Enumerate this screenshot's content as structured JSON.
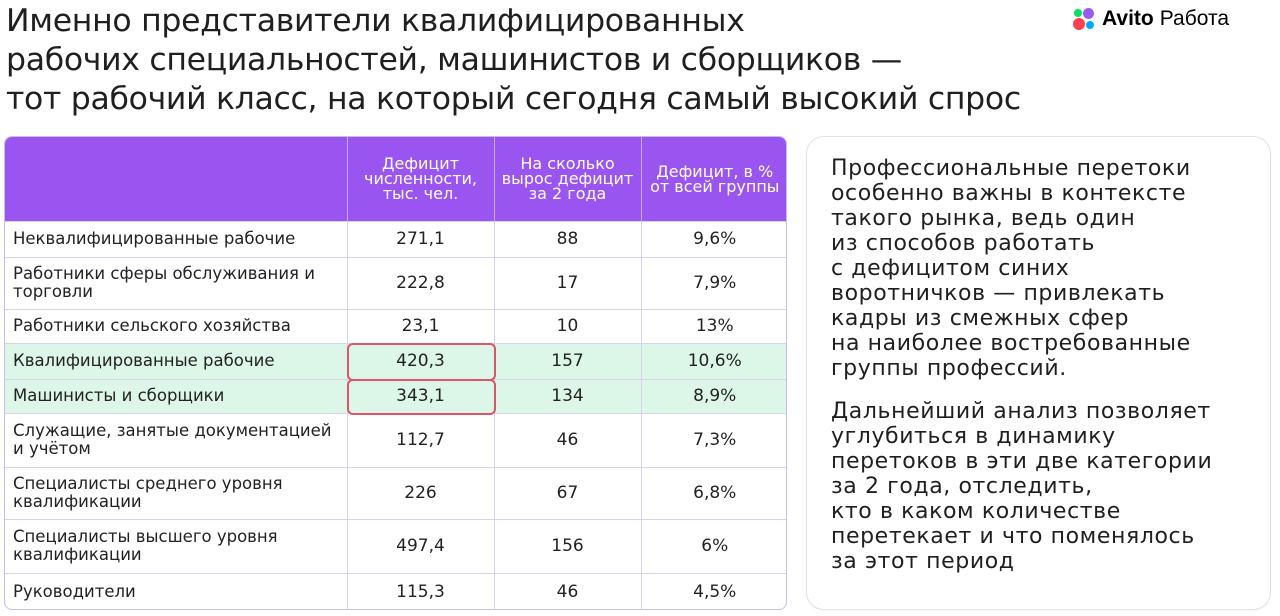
{
  "title_lines": [
    "Именно представители квалифицированных",
    "рабочих специальностей, машинистов и сборщиков —",
    "тот рабочий класс, на который сегодня самый высокий спрос"
  ],
  "logo": {
    "brand": "Avito",
    "product": "Работа",
    "colors": [
      "#04e061",
      "#ff4053",
      "#965eeb",
      "#0af"
    ]
  },
  "table": {
    "header_color": "#9a55f0",
    "highlight_color": "#dcf6e7",
    "highlight_border_color": "#e05467",
    "headers": [
      "",
      "Дефицит численности, тыс. чел.",
      "На сколько вырос дефицит за 2 года",
      "Дефицит, в % от всей группы"
    ],
    "rows": [
      {
        "name": "Неквалифицированные рабочие",
        "deficit": "271,1",
        "growth": "88",
        "percent": "9,6%",
        "highlighted": false
      },
      {
        "name": "Работники сферы обслуживания и торговли",
        "deficit": "222,8",
        "growth": "17",
        "percent": "7,9%",
        "highlighted": false
      },
      {
        "name": "Работники сельского хозяйства",
        "deficit": "23,1",
        "growth": "10",
        "percent": "13%",
        "highlighted": false
      },
      {
        "name": "Квалифицированные рабочие",
        "deficit": "420,3",
        "growth": "157",
        "percent": "10,6%",
        "highlighted": true
      },
      {
        "name": "Машинисты и сборщики",
        "deficit": "343,1",
        "growth": "134",
        "percent": "8,9%",
        "highlighted": true
      },
      {
        "name": "Служащие, занятые документацией и учётом",
        "deficit": "112,7",
        "growth": "46",
        "percent": "7,3%",
        "highlighted": false
      },
      {
        "name": "Специалисты среднего уровня квалификации",
        "deficit": "226",
        "growth": "67",
        "percent": "6,8%",
        "highlighted": false
      },
      {
        "name": "Специалисты высшего уровня квалификации",
        "deficit": "497,4",
        "growth": "156",
        "percent": "6%",
        "highlighted": false
      },
      {
        "name": "Руководители",
        "deficit": "115,3",
        "growth": "46",
        "percent": "4,5%",
        "highlighted": false
      }
    ]
  },
  "card": {
    "paragraph1": [
      "Профессиональные перетоки",
      "особенно важны в контексте",
      "такого рынка, ведь один",
      "из способов работать",
      "с дефицитом синих",
      "воротничков  — привлекать",
      "кадры из смежных сфер",
      "на наиболее востребованные",
      "группы профессий."
    ],
    "paragraph2": [
      "Дальнейший анализ позволяет",
      "углубиться в динамику",
      "перетоков в эти две категории",
      "за 2 года, отследить,",
      "кто в каком количестве",
      "перетекает и что поменялось",
      "за этот период"
    ]
  }
}
